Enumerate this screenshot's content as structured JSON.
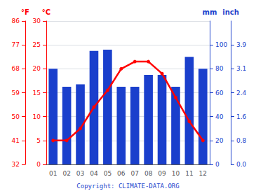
{
  "chart_data": {
    "type": "bar",
    "categories": [
      "01",
      "02",
      "03",
      "04",
      "05",
      "06",
      "07",
      "08",
      "09",
      "10",
      "11",
      "12"
    ],
    "series": [
      {
        "type": "bar",
        "color": "#1a3fcc",
        "axis": "y2",
        "values": [
          80,
          65,
          67,
          95,
          96,
          65,
          65,
          75,
          75,
          65,
          90,
          80
        ]
      },
      {
        "type": "line",
        "color": "#ff0000",
        "marker": "circle",
        "values": [
          5.0,
          5.0,
          7.5,
          12.0,
          15.5,
          20.0,
          21.5,
          21.5,
          19.0,
          14.0,
          9.0,
          5.0
        ]
      }
    ],
    "ylabel": "°C",
    "ylim": [
      0,
      30
    ],
    "yticks": [
      0,
      5,
      10,
      15,
      20,
      25,
      30
    ],
    "y2label": "mm",
    "y2lim": [
      0,
      120
    ],
    "y2ticks": [
      0,
      20,
      40,
      60,
      80,
      100
    ],
    "y3label": "°F",
    "y3lim": [
      0,
      30
    ],
    "y3ticks": [
      {
        "value": 0,
        "label": "32"
      },
      {
        "value": 5,
        "label": "41"
      },
      {
        "value": 10,
        "label": "50"
      },
      {
        "value": 15,
        "label": "59"
      },
      {
        "value": 20,
        "label": "68"
      },
      {
        "value": 25,
        "label": "77"
      },
      {
        "value": 30,
        "label": "86"
      }
    ],
    "y4label": "inch",
    "y4lim": [
      0,
      120
    ],
    "y4ticks": [
      {
        "value": 0,
        "label": "0.0"
      },
      {
        "value": 20,
        "label": "0.8"
      },
      {
        "value": 40,
        "label": "1.6"
      },
      {
        "value": 60,
        "label": "2.4"
      },
      {
        "value": 80,
        "label": "3.1"
      },
      {
        "value": 100,
        "label": "3.9"
      }
    ],
    "grid": true,
    "annotation": "Copyright: CLIMATE-DATA.ORG"
  }
}
